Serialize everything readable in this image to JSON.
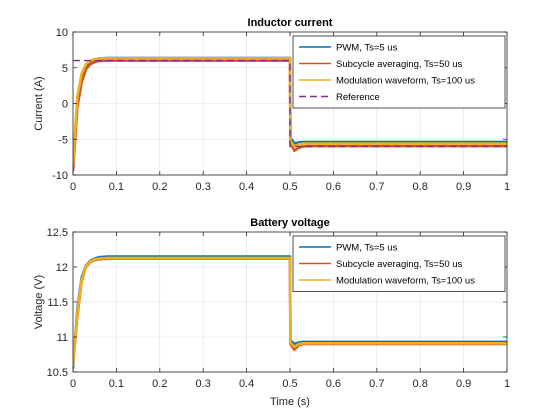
{
  "chart_data": [
    {
      "type": "line",
      "title": "Inductor current",
      "xlabel": "",
      "ylabel": "Current (A)",
      "xlim": [
        0,
        1
      ],
      "ylim": [
        -10,
        10
      ],
      "xticks": [
        0,
        0.1,
        0.2,
        0.3,
        0.4,
        0.5,
        0.6,
        0.7,
        0.8,
        0.9,
        1
      ],
      "yticks": [
        -10,
        -5,
        0,
        5,
        10
      ],
      "xtick_labels": [
        "0",
        "0.1",
        "0.2",
        "0.3",
        "0.4",
        "0.5",
        "0.6",
        "0.7",
        "0.8",
        "0.9",
        "1"
      ],
      "ytick_labels": [
        "-10",
        "-5",
        "0",
        "5",
        "10"
      ],
      "grid": true,
      "legend_position": "top-right",
      "series": [
        {
          "name": "PWM, Ts=5 us",
          "color": "#0072BD",
          "style": "solid",
          "x": [
            0,
            0.01,
            0.02,
            0.03,
            0.04,
            0.05,
            0.06,
            0.08,
            0.1,
            0.2,
            0.3,
            0.4,
            0.5,
            0.501,
            0.51,
            0.52,
            0.53,
            0.55,
            0.6,
            0.7,
            0.8,
            0.9,
            1
          ],
          "y": [
            -9,
            0.5,
            3.8,
            5.3,
            5.9,
            6.15,
            6.3,
            6.35,
            6.35,
            6.35,
            6.35,
            6.35,
            6.35,
            -4.8,
            -5.6,
            -5.45,
            -5.4,
            -5.4,
            -5.4,
            -5.4,
            -5.4,
            -5.4,
            -5.4
          ]
        },
        {
          "name": "Subcycle averaging, Ts=50 us",
          "color": "#D95319",
          "style": "solid",
          "x": [
            0,
            0.01,
            0.02,
            0.03,
            0.04,
            0.05,
            0.06,
            0.08,
            0.1,
            0.2,
            0.3,
            0.4,
            0.5,
            0.501,
            0.51,
            0.52,
            0.53,
            0.55,
            0.6,
            0.7,
            0.8,
            0.9,
            1
          ],
          "y": [
            -9.5,
            -0.5,
            3.0,
            4.8,
            5.5,
            5.8,
            5.95,
            6.0,
            6.0,
            6.0,
            6.0,
            6.0,
            6.0,
            -5.5,
            -6.6,
            -6.2,
            -6.0,
            -5.95,
            -5.95,
            -5.95,
            -5.95,
            -5.95,
            -5.95
          ]
        },
        {
          "name": "Modulation waveform, Ts=100 us",
          "color": "#EDB120",
          "style": "solid",
          "x": [
            0,
            0.01,
            0.02,
            0.03,
            0.04,
            0.05,
            0.06,
            0.08,
            0.1,
            0.2,
            0.3,
            0.4,
            0.5,
            0.501,
            0.51,
            0.52,
            0.53,
            0.55,
            0.6,
            0.7,
            0.8,
            0.9,
            1
          ],
          "y": [
            -8.5,
            1.0,
            4.2,
            5.5,
            6.0,
            6.2,
            6.3,
            6.3,
            6.3,
            6.3,
            6.3,
            6.3,
            6.3,
            -5.2,
            -6.0,
            -5.7,
            -5.6,
            -5.6,
            -5.6,
            -5.6,
            -5.6,
            -5.6,
            -5.6
          ]
        },
        {
          "name": "Reference",
          "color": "#7E2F8E",
          "style": "dashed",
          "x": [
            0,
            0.5,
            0.5,
            1
          ],
          "y": [
            6,
            6,
            -6,
            -6
          ]
        }
      ]
    },
    {
      "type": "line",
      "title": "Battery voltage",
      "xlabel": "Time (s)",
      "ylabel": "Voltage (V)",
      "xlim": [
        0,
        1
      ],
      "ylim": [
        10.5,
        12.5
      ],
      "xticks": [
        0,
        0.1,
        0.2,
        0.3,
        0.4,
        0.5,
        0.6,
        0.7,
        0.8,
        0.9,
        1
      ],
      "yticks": [
        10.5,
        11,
        11.5,
        12,
        12.5
      ],
      "xtick_labels": [
        "0",
        "0.1",
        "0.2",
        "0.3",
        "0.4",
        "0.5",
        "0.6",
        "0.7",
        "0.8",
        "0.9",
        "1"
      ],
      "ytick_labels": [
        "10.5",
        "11",
        "11.5",
        "12",
        "12.5"
      ],
      "grid": true,
      "legend_position": "top-right",
      "series": [
        {
          "name": "PWM, Ts=5 us",
          "color": "#0072BD",
          "style": "solid",
          "x": [
            0,
            0.01,
            0.02,
            0.03,
            0.04,
            0.05,
            0.06,
            0.08,
            0.1,
            0.2,
            0.3,
            0.4,
            0.5,
            0.501,
            0.51,
            0.52,
            0.53,
            0.55,
            0.6,
            0.7,
            0.8,
            0.9,
            1
          ],
          "y": [
            10.55,
            11.4,
            11.85,
            12.02,
            12.09,
            12.12,
            12.14,
            12.15,
            12.15,
            12.15,
            12.15,
            12.15,
            12.15,
            10.95,
            10.9,
            10.92,
            10.93,
            10.93,
            10.93,
            10.93,
            10.93,
            10.93,
            10.93
          ]
        },
        {
          "name": "Subcycle averaging, Ts=50 us",
          "color": "#D95319",
          "style": "solid",
          "x": [
            0,
            0.01,
            0.02,
            0.03,
            0.04,
            0.05,
            0.06,
            0.08,
            0.1,
            0.2,
            0.3,
            0.4,
            0.5,
            0.501,
            0.51,
            0.52,
            0.53,
            0.55,
            0.6,
            0.7,
            0.8,
            0.9,
            1
          ],
          "y": [
            10.6,
            11.3,
            11.8,
            12.0,
            12.07,
            12.1,
            12.11,
            12.12,
            12.12,
            12.12,
            12.12,
            12.12,
            12.12,
            10.9,
            10.82,
            10.88,
            10.9,
            10.9,
            10.9,
            10.9,
            10.9,
            10.9,
            10.9
          ]
        },
        {
          "name": "Modulation waveform, Ts=100 us",
          "color": "#EDB120",
          "style": "solid",
          "x": [
            0,
            0.01,
            0.02,
            0.03,
            0.04,
            0.05,
            0.06,
            0.08,
            0.1,
            0.2,
            0.3,
            0.4,
            0.5,
            0.501,
            0.51,
            0.52,
            0.53,
            0.55,
            0.6,
            0.7,
            0.8,
            0.9,
            1
          ],
          "y": [
            10.58,
            11.35,
            11.82,
            12.01,
            12.08,
            12.11,
            12.12,
            12.13,
            12.13,
            12.13,
            12.13,
            12.13,
            12.13,
            10.92,
            10.86,
            10.9,
            10.91,
            10.91,
            10.91,
            10.91,
            10.91,
            10.91,
            10.91
          ]
        }
      ]
    }
  ]
}
